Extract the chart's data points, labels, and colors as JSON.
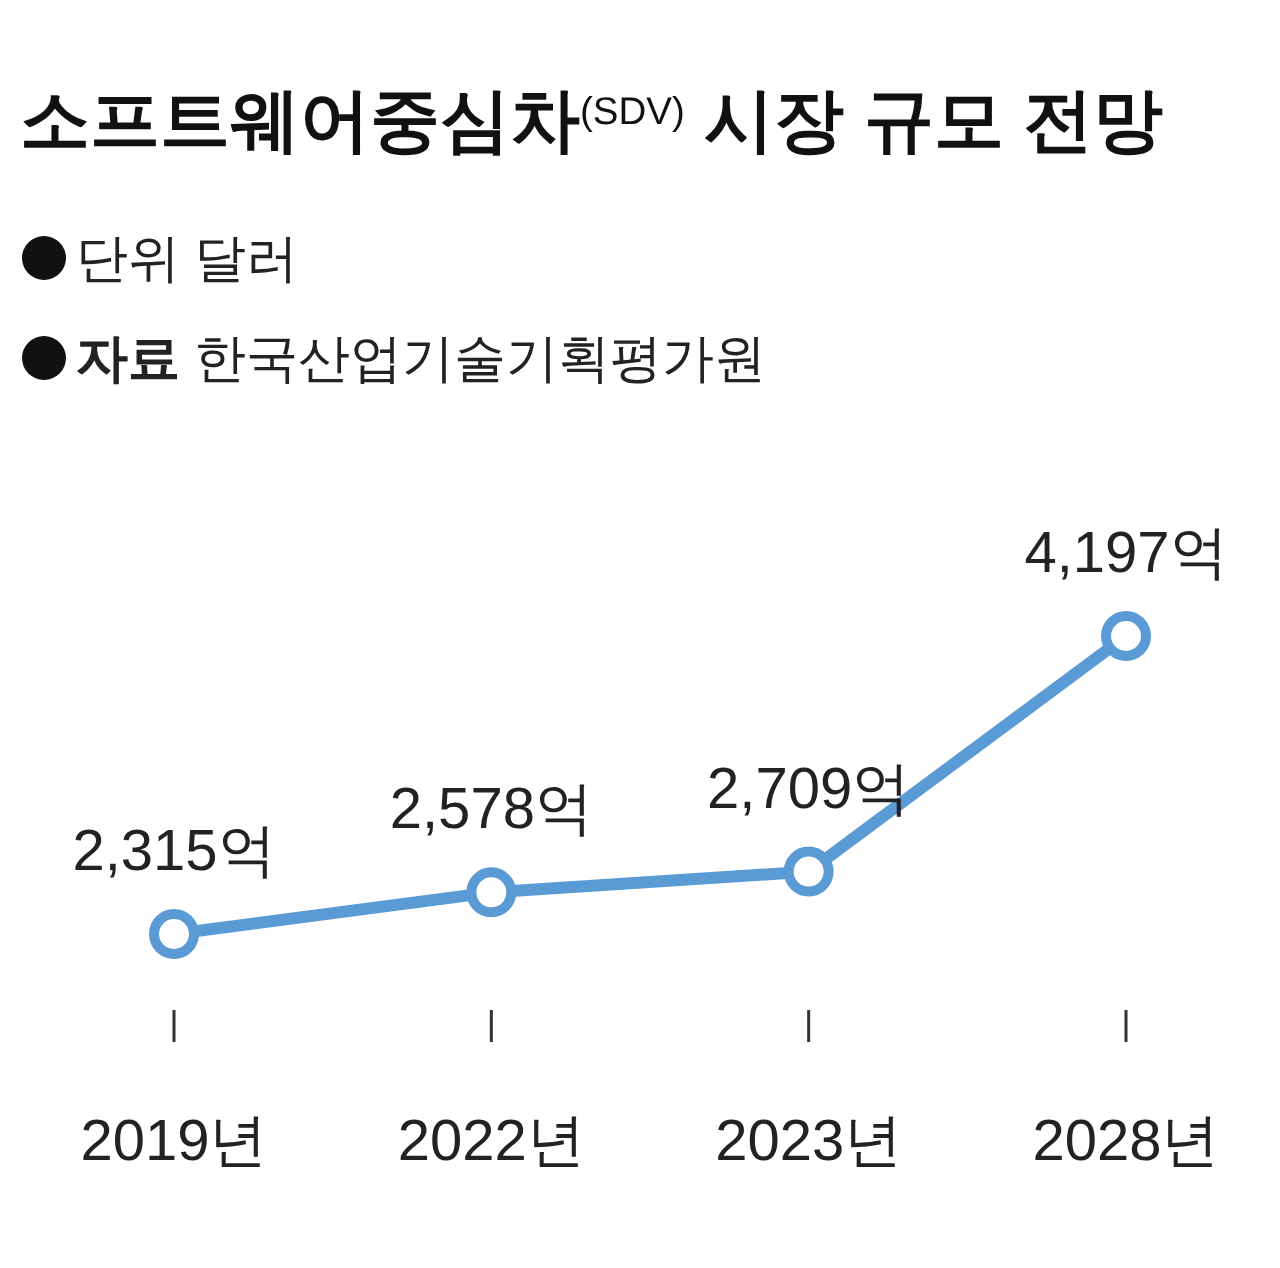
{
  "chart_data": {
    "type": "line",
    "title": "소프트웨어중심차$^{(SDV)}$ 시장 규모 전망",
    "annotations": [
      "단위 달러",
      "자료 한국산업기술기획평가원"
    ],
    "categories": [
      "2019년",
      "2022년",
      "2023년",
      "2028년"
    ],
    "series": [
      {
        "color": "#5b9bd5",
        "values": [
          2315,
          2578,
          2709,
          4197
        ],
        "value_labels": [
          "2,315억",
          "2,578억",
          "2,709억",
          "4,197억"
        ]
      }
    ],
    "marker": "circle",
    "line_style": "solid"
  }
}
